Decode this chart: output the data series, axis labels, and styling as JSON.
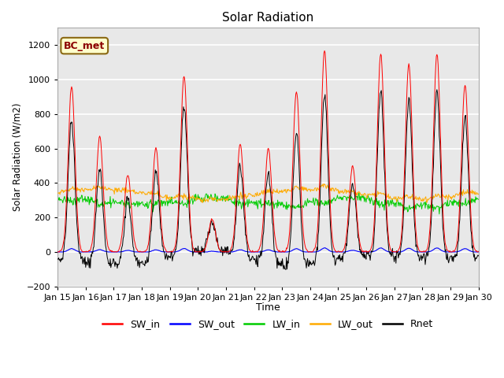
{
  "title": "Solar Radiation",
  "xlabel": "Time",
  "ylabel": "Solar Radiation (W/m2)",
  "ylim": [
    -200,
    1300
  ],
  "yticks": [
    -200,
    0,
    200,
    400,
    600,
    800,
    1000,
    1200
  ],
  "n_days": 15,
  "xtick_labels": [
    "Jan 15",
    "Jan 16",
    "Jan 17",
    "Jan 18",
    "Jan 19",
    "Jan 20",
    "Jan 21",
    "Jan 22",
    "Jan 23",
    "Jan 24",
    "Jan 25",
    "Jan 26",
    "Jan 27",
    "Jan 28",
    "Jan 29",
    "Jan 30"
  ],
  "annotation_text": "BC_met",
  "annotation_bg": "#ffffcc",
  "annotation_border": "#8B6914",
  "annotation_text_color": "#8B0000",
  "colors": {
    "SW_in": "#ff0000",
    "SW_out": "#0000ff",
    "LW_in": "#00cc00",
    "LW_out": "#ffaa00",
    "Rnet": "#000000"
  },
  "sw_in_peaks": [
    960,
    670,
    450,
    600,
    1020,
    190,
    625,
    600,
    930,
    1170,
    500,
    1150,
    1090,
    1150,
    970
  ],
  "background_color": "#ffffff",
  "plot_bg": "#e8e8e8",
  "grid_color": "#ffffff",
  "lw_in_base": 295,
  "lw_out_base": 330,
  "night_rnet": -80
}
